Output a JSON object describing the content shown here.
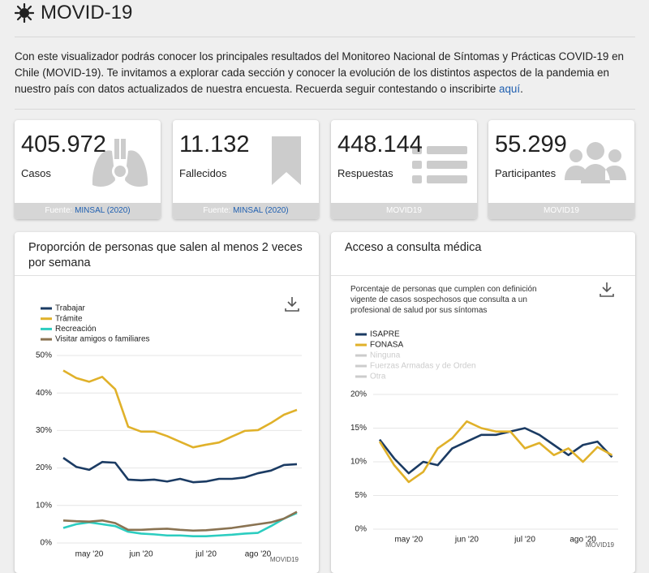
{
  "header": {
    "title": "MOVID-19"
  },
  "intro": {
    "text": "Con este visualizador podrás conocer los principales resultados del Monitoreo Nacional de Síntomas y Prácticas COVID-19 en Chile (MOVID-19). Te invitamos a explorar cada sección y conocer la evolución de los distintos aspectos de la pandemia en nuestro país con datos actualizados de nuestra encuesta. Recuerda seguir contestando o inscribirte",
    "link": "aquí",
    "end": "."
  },
  "cards": [
    {
      "value": "405.972",
      "label": "Casos",
      "source_prefix": "Fuente:",
      "source_link": "MINSAL (2020)"
    },
    {
      "value": "11.132",
      "label": "Fallecidos",
      "source_prefix": "Fuente:",
      "source_link": "MINSAL (2020)"
    },
    {
      "value": "448.144",
      "label": "Respuestas",
      "source": "MOVID19"
    },
    {
      "value": "55.299",
      "label": "Participantes",
      "source": "MOVID19"
    }
  ],
  "charts": [
    {
      "type": "line",
      "title": "Proporción de personas que salen al menos 2 veces por semana",
      "source": "MOVID19",
      "categories": [
        null,
        null,
        "may '20",
        null,
        null,
        null,
        "jun '20",
        null,
        null,
        null,
        null,
        "jul '20",
        null,
        null,
        null,
        "ago '20",
        null,
        null,
        null
      ],
      "series": [
        {
          "name": "Trabajar",
          "color": "#1b3b63",
          "values": [
            22.7,
            20.3,
            19.5,
            21.6,
            21.4,
            16.9,
            16.7,
            16.9,
            16.4,
            17.1,
            16.2,
            16.4,
            17.1,
            17.1,
            17.5,
            18.6,
            19.3,
            20.8,
            21
          ]
        },
        {
          "name": "Trámite",
          "color": "#e0b12a",
          "values": [
            46,
            44,
            43,
            44.3,
            41,
            31,
            29.7,
            29.7,
            28.5,
            27,
            25.5,
            26.2,
            26.8,
            28.4,
            29.9,
            30.1,
            32,
            34.2,
            35.5
          ]
        },
        {
          "name": "Recreación",
          "color": "#2ccdc0",
          "values": [
            4,
            5,
            5.5,
            5,
            4.5,
            3,
            2.5,
            2.3,
            2,
            2,
            1.8,
            1.8,
            2,
            2.2,
            2.5,
            2.7,
            4.5,
            6.5,
            8
          ]
        },
        {
          "name": "Visitar amigos o familiares",
          "color": "#8a7352",
          "values": [
            6,
            5.8,
            5.7,
            6,
            5.3,
            3.5,
            3.5,
            3.7,
            3.8,
            3.5,
            3.3,
            3.4,
            3.7,
            4,
            4.5,
            5,
            5.5,
            6.5,
            8.3
          ]
        }
      ],
      "ylim": [
        0,
        50
      ],
      "yticks": [
        {
          "value": 0,
          "label": "0%"
        },
        {
          "value": 10,
          "label": "10%"
        },
        {
          "value": 20,
          "label": "20%"
        },
        {
          "value": 30,
          "label": "30%"
        },
        {
          "value": 40,
          "label": "40%"
        },
        {
          "value": 50,
          "label": "50%"
        }
      ],
      "grid": true
    },
    {
      "type": "line",
      "title": "Acceso a consulta médica",
      "subtitle": "Porcentaje de personas que cumplen con definición vigente de casos sospechosos que consulta a un profesional de salud por sus síntomas",
      "source": "MOVID19",
      "categories": [
        null,
        null,
        "may '20",
        null,
        null,
        null,
        "jun '20",
        null,
        null,
        null,
        "jul '20",
        null,
        null,
        null,
        "ago '20",
        null,
        null
      ],
      "series": [
        {
          "name": "ISAPRE",
          "color": "#1b3b63",
          "values": [
            13.3,
            10.5,
            8.3,
            10,
            9.5,
            12,
            13,
            14,
            14,
            14.5,
            15,
            14,
            12.5,
            11,
            12.5,
            13,
            10.7
          ]
        },
        {
          "name": "FONASA",
          "color": "#e0b12a",
          "values": [
            13,
            9.5,
            7,
            8.5,
            12,
            13.5,
            16,
            15,
            14.5,
            14.5,
            12,
            12.8,
            11,
            12,
            10,
            12.2,
            11
          ]
        }
      ],
      "hidden_legend": {
        "names": [
          "Ninguna",
          "Fuerzas Armadas y de Orden",
          "Otra"
        ],
        "color": "#cccccc"
      },
      "ylim": [
        0,
        20
      ],
      "yticks": [
        {
          "value": 0,
          "label": "0%"
        },
        {
          "value": 5,
          "label": "5%"
        },
        {
          "value": 10,
          "label": "10%"
        },
        {
          "value": 15,
          "label": "15%"
        },
        {
          "value": 20,
          "label": "20%"
        }
      ],
      "grid": true
    }
  ]
}
